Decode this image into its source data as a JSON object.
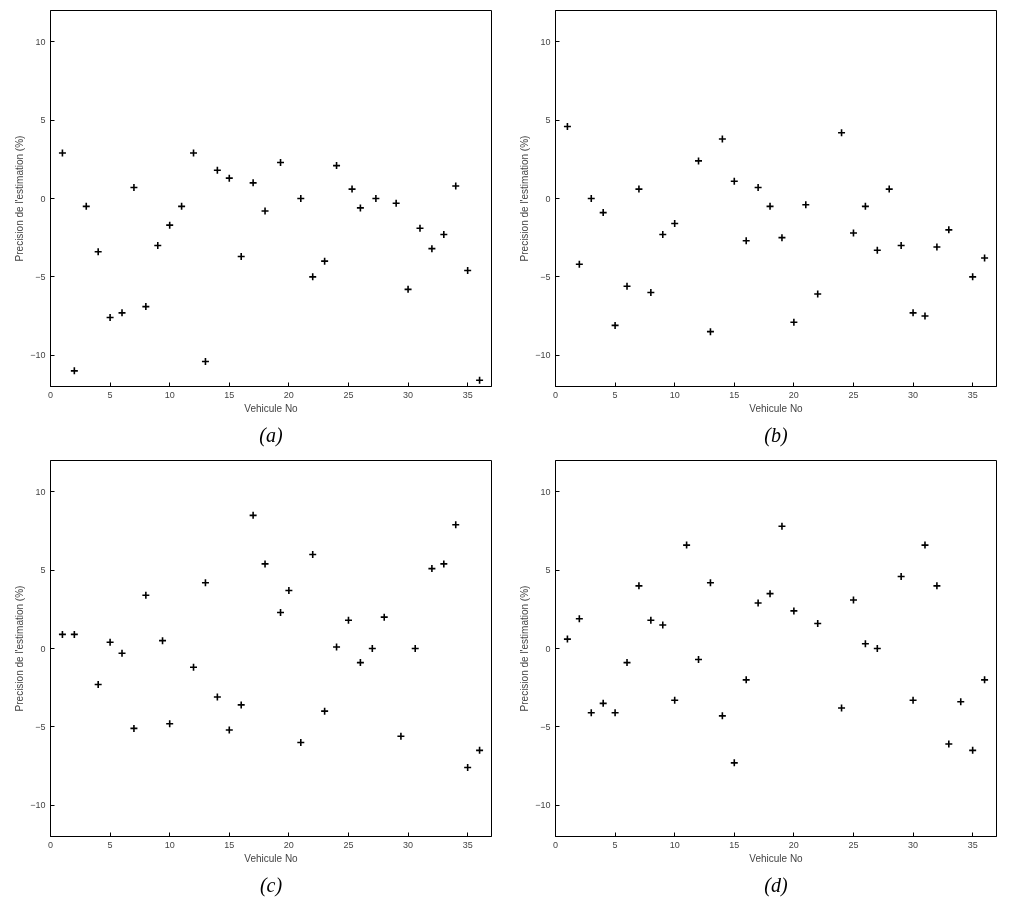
{
  "chart_data": [
    {
      "type": "scatter",
      "title": "(a)",
      "xlabel": "Vehicule No",
      "ylabel": "Precision de l'estimation (%)",
      "marker": "cross",
      "grid": false,
      "xlim": [
        0,
        37
      ],
      "ylim": [
        -12,
        12
      ],
      "xticks": [
        0,
        5,
        10,
        15,
        20,
        25,
        30,
        35
      ],
      "yticks": [
        -10,
        -5,
        0,
        5,
        10
      ],
      "series": [
        {
          "color": "#000000",
          "x": [
            1,
            2,
            3,
            4,
            5,
            6,
            7,
            8,
            9,
            10,
            11,
            12,
            13,
            14,
            15,
            16,
            17,
            18,
            19.3,
            21,
            22,
            23,
            24,
            25.3,
            26,
            27.3,
            29,
            30,
            31,
            32,
            33,
            34,
            35,
            36
          ],
          "values": [
            2.9,
            -11.0,
            -0.5,
            -3.4,
            -7.6,
            -7.3,
            0.7,
            -6.9,
            -3.0,
            -1.7,
            -0.5,
            2.9,
            -10.4,
            1.8,
            1.3,
            -3.7,
            1.0,
            -0.8,
            2.3,
            0.0,
            -5.0,
            -4.0,
            2.1,
            0.6,
            -0.6,
            0.0,
            -0.3,
            -5.8,
            -1.9,
            -3.2,
            -2.3,
            0.8,
            -4.6,
            -11.6
          ]
        }
      ]
    },
    {
      "type": "scatter",
      "title": "(b)",
      "xlabel": "Vehicule No",
      "ylabel": "Precision de l'estimation (%)",
      "marker": "cross",
      "grid": false,
      "xlim": [
        0,
        37
      ],
      "ylim": [
        -12,
        12
      ],
      "xticks": [
        0,
        5,
        10,
        15,
        20,
        25,
        30,
        35
      ],
      "yticks": [
        -10,
        -5,
        0,
        5,
        10
      ],
      "series": [
        {
          "color": "#000000",
          "x": [
            1,
            2,
            3,
            4,
            5,
            6,
            7,
            8,
            9,
            10,
            12,
            13,
            14,
            15,
            16,
            17,
            18,
            19,
            20,
            21,
            22,
            24,
            25,
            26,
            27,
            28,
            29,
            30,
            31,
            32,
            33,
            35,
            36
          ],
          "values": [
            4.6,
            -4.2,
            0.0,
            -0.9,
            -8.1,
            -5.6,
            0.6,
            -6.0,
            -2.3,
            -1.6,
            2.4,
            -8.5,
            3.8,
            1.1,
            -2.7,
            0.7,
            -0.5,
            -2.5,
            -7.9,
            -0.4,
            -6.1,
            4.2,
            -2.2,
            -0.5,
            -3.3,
            0.6,
            -3.0,
            -7.3,
            -7.5,
            -3.1,
            -2.0,
            -5.0,
            -3.8
          ]
        }
      ]
    },
    {
      "type": "scatter",
      "title": "(c)",
      "xlabel": "Vehicule No",
      "ylabel": "Precision de l'estimation (%)",
      "marker": "cross",
      "grid": false,
      "xlim": [
        0,
        37
      ],
      "ylim": [
        -12,
        12
      ],
      "xticks": [
        0,
        5,
        10,
        15,
        20,
        25,
        30,
        35
      ],
      "yticks": [
        -10,
        -5,
        0,
        5,
        10
      ],
      "series": [
        {
          "color": "#000000",
          "x": [
            1,
            2,
            4,
            5,
            6,
            7,
            8,
            9.4,
            10,
            12,
            13,
            14,
            15,
            16,
            17,
            18,
            19.3,
            20,
            21,
            22,
            23,
            24,
            25,
            26,
            27,
            28,
            29.4,
            30.6,
            32,
            33,
            34,
            35,
            36
          ],
          "values": [
            0.9,
            0.9,
            -2.3,
            0.4,
            -0.3,
            -5.1,
            3.4,
            0.5,
            -4.8,
            -1.2,
            4.2,
            -3.1,
            -5.2,
            -3.6,
            8.5,
            5.4,
            2.3,
            3.7,
            -6.0,
            6.0,
            -4.0,
            0.1,
            1.8,
            -0.9,
            0.0,
            2.0,
            -5.6,
            0.0,
            5.1,
            5.4,
            7.9,
            -7.6,
            -6.5
          ]
        }
      ]
    },
    {
      "type": "scatter",
      "title": "(d)",
      "xlabel": "Vehicule No",
      "ylabel": "Precision de l'estimation (%)",
      "marker": "cross",
      "grid": false,
      "xlim": [
        0,
        37
      ],
      "ylim": [
        -12,
        12
      ],
      "xticks": [
        0,
        5,
        10,
        15,
        20,
        25,
        30,
        35
      ],
      "yticks": [
        -10,
        -5,
        0,
        5,
        10
      ],
      "series": [
        {
          "color": "#000000",
          "x": [
            1,
            2,
            3,
            4,
            5,
            6,
            7,
            8,
            9,
            10,
            11,
            12,
            13,
            14,
            15,
            16,
            17,
            18,
            19,
            20,
            22,
            24,
            25,
            26,
            27,
            29,
            30,
            31,
            32,
            33,
            34,
            35,
            36
          ],
          "values": [
            0.6,
            1.9,
            -4.1,
            -3.5,
            -4.1,
            -0.9,
            4.0,
            1.8,
            1.5,
            -3.3,
            6.6,
            -0.7,
            4.2,
            -4.3,
            -7.3,
            -2.0,
            2.9,
            3.5,
            7.8,
            2.4,
            1.6,
            -3.8,
            3.1,
            0.3,
            0.0,
            4.6,
            -3.3,
            6.6,
            4.0,
            -6.1,
            -3.4,
            -6.5,
            -2.0
          ]
        }
      ]
    }
  ]
}
